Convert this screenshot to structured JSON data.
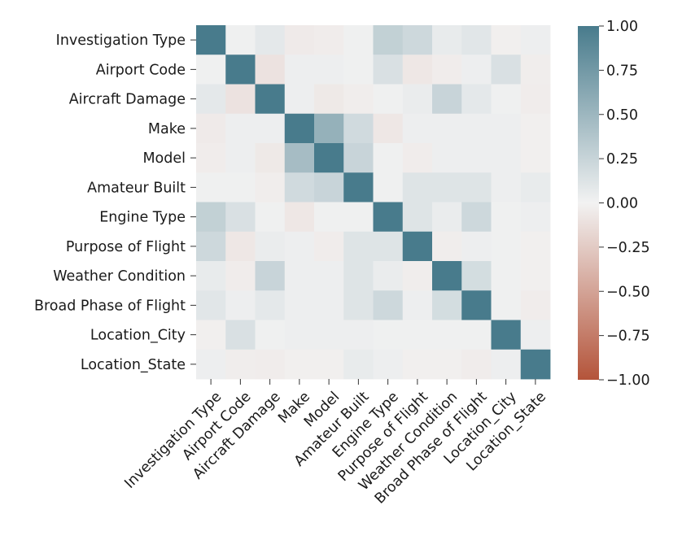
{
  "chart_data": {
    "type": "heatmap",
    "title": "",
    "xlabel": "",
    "ylabel": "",
    "labels": [
      "Investigation Type",
      "Airport Code",
      "Aircraft Damage",
      "Make",
      "Model",
      "Amateur Built",
      "Engine Type",
      "Purpose of Flight",
      "Weather Condition",
      "Broad Phase of Flight",
      "Location_City",
      "Location_State"
    ],
    "matrix": [
      [
        1.0,
        0.02,
        0.08,
        -0.05,
        -0.04,
        0.02,
        0.28,
        0.22,
        0.06,
        0.1,
        -0.02,
        0.03
      ],
      [
        0.02,
        1.0,
        -0.1,
        0.03,
        0.03,
        0.02,
        0.15,
        -0.07,
        -0.04,
        0.03,
        0.15,
        -0.03
      ],
      [
        0.08,
        -0.1,
        1.0,
        0.03,
        -0.06,
        -0.03,
        0.02,
        0.05,
        0.25,
        0.08,
        0.02,
        -0.04
      ],
      [
        -0.05,
        0.03,
        0.03,
        1.0,
        0.55,
        0.2,
        -0.07,
        0.03,
        0.03,
        0.03,
        0.03,
        -0.02
      ],
      [
        -0.04,
        0.03,
        -0.06,
        0.45,
        1.0,
        0.25,
        0.02,
        -0.04,
        0.03,
        0.03,
        0.03,
        -0.02
      ],
      [
        0.02,
        0.02,
        -0.03,
        0.2,
        0.25,
        1.0,
        0.02,
        0.12,
        0.12,
        0.12,
        0.03,
        0.06
      ],
      [
        0.28,
        0.15,
        0.02,
        -0.07,
        0.02,
        0.02,
        1.0,
        0.12,
        0.05,
        0.22,
        0.02,
        0.03
      ],
      [
        0.22,
        -0.07,
        0.05,
        0.03,
        -0.04,
        0.12,
        0.12,
        1.0,
        -0.03,
        0.03,
        0.02,
        -0.02
      ],
      [
        0.06,
        -0.04,
        0.25,
        0.03,
        0.03,
        0.12,
        0.05,
        -0.03,
        1.0,
        0.18,
        0.02,
        -0.02
      ],
      [
        0.1,
        0.03,
        0.08,
        0.03,
        0.03,
        0.12,
        0.22,
        0.03,
        0.18,
        1.0,
        0.02,
        -0.04
      ],
      [
        -0.02,
        0.15,
        0.02,
        0.03,
        0.03,
        0.03,
        0.02,
        0.02,
        0.02,
        0.02,
        1.0,
        0.03
      ],
      [
        0.03,
        -0.03,
        -0.04,
        -0.02,
        -0.02,
        0.06,
        0.03,
        -0.02,
        -0.02,
        -0.04,
        0.03,
        1.0
      ]
    ],
    "vmin": -1.0,
    "vmax": 1.0,
    "colorbar_ticks": [
      "1.00",
      "0.75",
      "0.50",
      "0.25",
      "0.00",
      "−0.25",
      "−0.50",
      "−0.75",
      "−1.00"
    ],
    "colors": {
      "negative": "#b4543a",
      "center": "#f2f2f2",
      "positive": "#487b8c"
    },
    "grid": false,
    "legend": "colorbar-right"
  }
}
